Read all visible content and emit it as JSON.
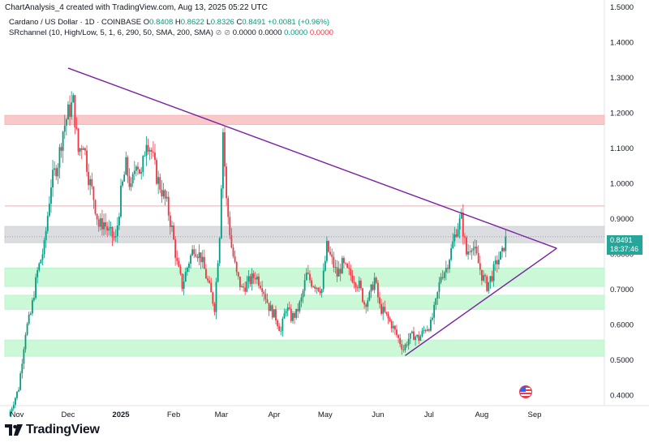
{
  "header": {
    "created_text": "ChartAnalysis_4 created with TradingView.com, Aug 13, 2025 05:22 UTC"
  },
  "symbol": {
    "name": "Cardano / US Dollar · 1D · COINBASE",
    "o_label": "O",
    "o_value": "0.8408",
    "h_label": "H",
    "h_value": "0.8622",
    "l_label": "L",
    "l_value": "0.8326",
    "c_label": "C",
    "c_value": "0.8491",
    "change": "+0.0081 (+0.96%)"
  },
  "indicator": {
    "label": "SRchannel (10, High/Low, 5, 1, 6, 290, 50, SMA, 200, SMA)",
    "icons": "⊘ ⊘",
    "v1": "0.0000",
    "v2": "0.0000",
    "v3": "0.0000",
    "v4": "0.0000"
  },
  "price_tag": {
    "price": "0.8491",
    "countdown": "18:37:46"
  },
  "branding": {
    "logo_text": "TradingView"
  },
  "colors": {
    "up": "#089981",
    "down": "#f23645",
    "trendline": "#7b1fa2",
    "resistance": "#f7b7b7",
    "support": "#b9f6ca",
    "neutral": "#cfd1d6",
    "tag": "#26a69a"
  },
  "chart_data": {
    "type": "candlestick",
    "title": "Cardano / US Dollar · 1D · COINBASE",
    "xlabel": "",
    "ylabel": "",
    "ylim": [
      0.37,
      1.52
    ],
    "y_ticks": [
      "1.5000",
      "1.4000",
      "1.3000",
      "1.2000",
      "1.1000",
      "1.0000",
      "0.9000",
      "0.8000",
      "0.7000",
      "0.6000",
      "0.5000",
      "0.4000"
    ],
    "x_ticks": [
      {
        "label": "Nov",
        "day": 0
      },
      {
        "label": "Dec",
        "day": 30
      },
      {
        "label": "2025",
        "day": 61
      },
      {
        "label": "Feb",
        "day": 92
      },
      {
        "label": "Mar",
        "day": 120
      },
      {
        "label": "Apr",
        "day": 151
      },
      {
        "label": "May",
        "day": 181
      },
      {
        "label": "Jun",
        "day": 212
      },
      {
        "label": "Jul",
        "day": 242
      },
      {
        "label": "Aug",
        "day": 273
      },
      {
        "label": "Sep",
        "day": 304
      }
    ],
    "day_range": [
      -10,
      345
    ],
    "zones": [
      {
        "name": "resistance-zone",
        "low": 1.167,
        "high": 1.193,
        "color": "#f7b7b7"
      },
      {
        "name": "neutral-zone",
        "low": 0.832,
        "high": 0.878,
        "color": "#cfd1d6"
      },
      {
        "name": "support-zone-upper",
        "low": 0.708,
        "high": 0.76,
        "color": "#b9f6ca"
      },
      {
        "name": "support-zone-middle",
        "low": 0.643,
        "high": 0.683,
        "color": "#b9f6ca"
      },
      {
        "name": "support-zone-lower",
        "low": 0.51,
        "high": 0.556,
        "color": "#b9f6ca"
      }
    ],
    "levels": [
      {
        "name": "resistance-line",
        "value": 0.936,
        "color": "#f7a8a8"
      },
      {
        "name": "current-price-line",
        "value": 0.8491,
        "color": "#9aa0aa"
      }
    ],
    "trendlines": [
      {
        "name": "descending-trendline",
        "from": {
          "day": 30,
          "price": 1.327
        },
        "to": {
          "day": 317,
          "price": 0.816
        }
      },
      {
        "name": "ascending-trendline",
        "from": {
          "day": 228,
          "price": 0.512
        },
        "to": {
          "day": 317,
          "price": 0.816
        }
      }
    ],
    "last_price": 0.8491,
    "price_path": [
      [
        -5,
        0.34
      ],
      [
        1,
        0.42
      ],
      [
        5,
        0.58
      ],
      [
        8,
        0.63
      ],
      [
        12,
        0.75
      ],
      [
        16,
        0.82
      ],
      [
        20,
        1.0
      ],
      [
        24,
        1.06
      ],
      [
        27,
        1.15
      ],
      [
        30,
        1.2
      ],
      [
        33,
        1.23
      ],
      [
        36,
        1.09
      ],
      [
        39,
        1.12
      ],
      [
        42,
        1.02
      ],
      [
        45,
        0.96
      ],
      [
        48,
        0.88
      ],
      [
        51,
        0.89
      ],
      [
        54,
        0.86
      ],
      [
        58,
        0.84
      ],
      [
        61,
        0.97
      ],
      [
        64,
        1.05
      ],
      [
        67,
        0.98
      ],
      [
        70,
        1.07
      ],
      [
        73,
        1.02
      ],
      [
        76,
        1.13
      ],
      [
        79,
        1.09
      ],
      [
        82,
        1.02
      ],
      [
        85,
        0.98
      ],
      [
        88,
        0.94
      ],
      [
        91,
        0.87
      ],
      [
        94,
        0.77
      ],
      [
        97,
        0.71
      ],
      [
        101,
        0.78
      ],
      [
        104,
        0.82
      ],
      [
        108,
        0.79
      ],
      [
        112,
        0.72
      ],
      [
        116,
        0.65
      ],
      [
        119,
        0.86
      ],
      [
        121,
        1.15
      ],
      [
        123,
        0.95
      ],
      [
        126,
        0.82
      ],
      [
        129,
        0.74
      ],
      [
        132,
        0.7
      ],
      [
        136,
        0.72
      ],
      [
        140,
        0.74
      ],
      [
        144,
        0.71
      ],
      [
        148,
        0.65
      ],
      [
        152,
        0.62
      ],
      [
        155,
        0.58
      ],
      [
        158,
        0.65
      ],
      [
        161,
        0.62
      ],
      [
        164,
        0.63
      ],
      [
        167,
        0.67
      ],
      [
        170,
        0.74
      ],
      [
        173,
        0.72
      ],
      [
        176,
        0.71
      ],
      [
        179,
        0.7
      ],
      [
        182,
        0.82
      ],
      [
        185,
        0.78
      ],
      [
        188,
        0.74
      ],
      [
        191,
        0.77
      ],
      [
        194,
        0.75
      ],
      [
        198,
        0.73
      ],
      [
        201,
        0.71
      ],
      [
        204,
        0.66
      ],
      [
        207,
        0.68
      ],
      [
        210,
        0.73
      ],
      [
        213,
        0.65
      ],
      [
        216,
        0.63
      ],
      [
        220,
        0.6
      ],
      [
        224,
        0.56
      ],
      [
        227,
        0.53
      ],
      [
        230,
        0.56
      ],
      [
        233,
        0.57
      ],
      [
        236,
        0.56
      ],
      [
        240,
        0.59
      ],
      [
        243,
        0.6
      ],
      [
        246,
        0.66
      ],
      [
        249,
        0.74
      ],
      [
        252,
        0.76
      ],
      [
        255,
        0.81
      ],
      [
        258,
        0.87
      ],
      [
        261,
        0.9
      ],
      [
        264,
        0.8
      ],
      [
        267,
        0.83
      ],
      [
        270,
        0.79
      ],
      [
        273,
        0.74
      ],
      [
        276,
        0.71
      ],
      [
        279,
        0.74
      ],
      [
        282,
        0.78
      ],
      [
        285,
        0.8
      ],
      [
        287,
        0.8491
      ]
    ]
  }
}
